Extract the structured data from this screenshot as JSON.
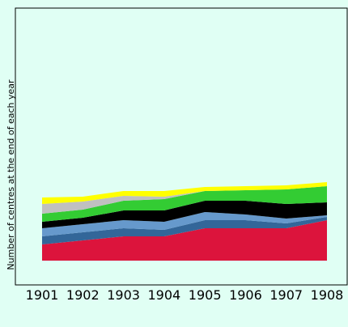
{
  "chart_data": {
    "type": "area",
    "stacked": true,
    "ylabel": "Number of centres at the end of each year",
    "x": [
      "1901",
      "1902",
      "1903",
      "1904",
      "1905",
      "1906",
      "1907",
      "1908"
    ],
    "ylim": [
      0,
      312
    ],
    "grid": false,
    "legend": "none",
    "series": [
      {
        "color": "#dc143c",
        "values": [
          20,
          25,
          30,
          30,
          40,
          40,
          40,
          50
        ]
      },
      {
        "color": "#336699",
        "values": [
          10,
          10,
          10,
          8,
          10,
          10,
          6,
          4
        ]
      },
      {
        "color": "#6699cc",
        "values": [
          10,
          10,
          10,
          10,
          10,
          7,
          6,
          2
        ]
      },
      {
        "color": "#000000",
        "values": [
          8,
          8,
          12,
          14,
          14,
          17,
          18,
          16
        ]
      },
      {
        "color": "#33cc33",
        "values": [
          10,
          10,
          12,
          14,
          12,
          13,
          18,
          20
        ]
      },
      {
        "color": "#c0c0c0",
        "values": [
          12,
          10,
          6,
          3,
          0,
          0,
          0,
          0
        ]
      },
      {
        "color": "#ffff00",
        "values": [
          8,
          6,
          6,
          7,
          5,
          5,
          5,
          5
        ]
      }
    ],
    "colors": {
      "background": "#e0fff4",
      "plot_background": "#e0fff4",
      "frame": "#000000"
    }
  }
}
